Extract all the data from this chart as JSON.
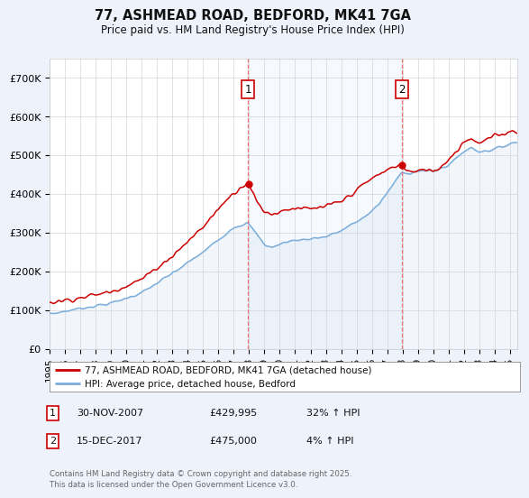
{
  "title": "77, ASHMEAD ROAD, BEDFORD, MK41 7GA",
  "subtitle": "Price paid vs. HM Land Registry's House Price Index (HPI)",
  "background_color": "#eef2fb",
  "plot_bg_color": "#ffffff",
  "ylim": [
    0,
    750000
  ],
  "yticks": [
    0,
    100000,
    200000,
    300000,
    400000,
    500000,
    600000,
    700000
  ],
  "ytick_labels": [
    "£0",
    "£100K",
    "£200K",
    "£300K",
    "£400K",
    "£500K",
    "£600K",
    "£700K"
  ],
  "xlim_start": 1995.0,
  "xlim_end": 2025.5,
  "xticks": [
    1995,
    1996,
    1997,
    1998,
    1999,
    2000,
    2001,
    2002,
    2003,
    2004,
    2005,
    2006,
    2007,
    2008,
    2009,
    2010,
    2011,
    2012,
    2013,
    2014,
    2015,
    2016,
    2017,
    2018,
    2019,
    2020,
    2021,
    2022,
    2023,
    2024,
    2025
  ],
  "purchase1_x": 2007.917,
  "purchase1_y": 429995,
  "purchase2_x": 2017.958,
  "purchase2_y": 475000,
  "red_line_color": "#cc0000",
  "blue_line_color": "#7aaddb",
  "blue_fill_color": "#ccddf0",
  "vertical_line_color": "#ee6666",
  "legend_label_red": "77, ASHMEAD ROAD, BEDFORD, MK41 7GA (detached house)",
  "legend_label_blue": "HPI: Average price, detached house, Bedford",
  "note1_label": "1",
  "note1_date": "30-NOV-2007",
  "note1_price": "£429,995",
  "note1_hpi": "32% ↑ HPI",
  "note2_label": "2",
  "note2_date": "15-DEC-2017",
  "note2_price": "£475,000",
  "note2_hpi": "4% ↑ HPI",
  "footer": "Contains HM Land Registry data © Crown copyright and database right 2025.\nThis data is licensed under the Open Government Licence v3.0."
}
